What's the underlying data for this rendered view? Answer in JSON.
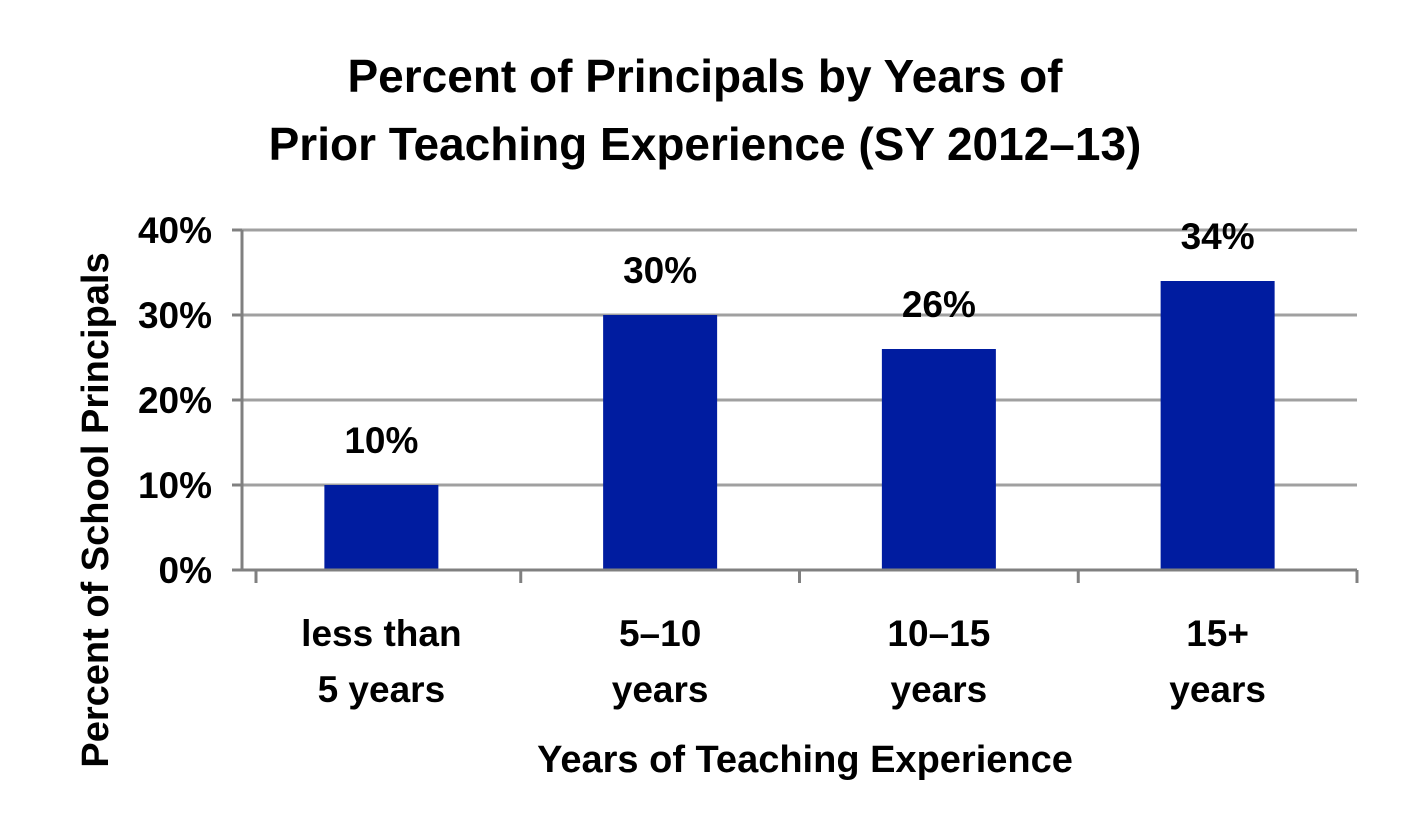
{
  "chart_data": {
    "type": "bar",
    "title": [
      "Percent of Principals by Years of",
      "Prior Teaching Experience (SY 2012–13)"
    ],
    "xlabel": "Years of Teaching Experience",
    "ylabel": "Percent of School Principals",
    "categories": [
      [
        "less than",
        "5 years"
      ],
      [
        "5–10",
        "years"
      ],
      [
        "10–15",
        "years"
      ],
      [
        "15+",
        "years"
      ]
    ],
    "values": [
      10,
      30,
      26,
      34
    ],
    "data_labels": [
      "10%",
      "30%",
      "26%",
      "34%"
    ],
    "yticks": [
      0,
      10,
      20,
      30,
      40
    ],
    "ytick_labels": [
      "0%",
      "10%",
      "20%",
      "30%",
      "40%"
    ],
    "ylim": [
      0,
      40
    ],
    "grid": true,
    "legend": "none",
    "colors": {
      "bar": "#001ca0",
      "grid": "#a0a0a0",
      "axis": "#808080",
      "text": "#000000"
    }
  }
}
